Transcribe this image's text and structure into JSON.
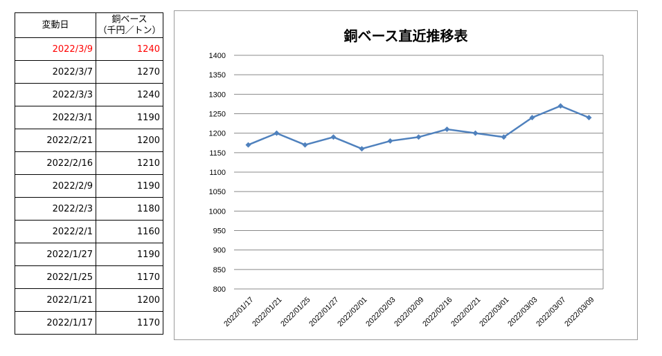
{
  "table": {
    "headers": [
      "変動日",
      "銅ベース\n（千円／トン）"
    ],
    "header_line1": "銅ベース",
    "header_line2": "（千円／トン）",
    "rows": [
      {
        "date": "2022/3/9",
        "price": "1240",
        "highlight": true
      },
      {
        "date": "2022/3/7",
        "price": "1270"
      },
      {
        "date": "2022/3/3",
        "price": "1240"
      },
      {
        "date": "2022/3/1",
        "price": "1190"
      },
      {
        "date": "2022/2/21",
        "price": "1200"
      },
      {
        "date": "2022/2/16",
        "price": "1210"
      },
      {
        "date": "2022/2/9",
        "price": "1190"
      },
      {
        "date": "2022/2/3",
        "price": "1180"
      },
      {
        "date": "2022/2/1",
        "price": "1160"
      },
      {
        "date": "2022/1/27",
        "price": "1190"
      },
      {
        "date": "2022/1/25",
        "price": "1170"
      },
      {
        "date": "2022/1/21",
        "price": "1200"
      },
      {
        "date": "2022/1/17",
        "price": "1170"
      }
    ],
    "highlight_color": "#ff0000"
  },
  "chart_data": {
    "type": "line",
    "title": "銅ベース直近推移表",
    "categories": [
      "2022/01/17",
      "2022/01/21",
      "2022/01/25",
      "2022/01/27",
      "2022/02/01",
      "2022/02/03",
      "2022/02/09",
      "2022/02/16",
      "2022/02/21",
      "2022/03/01",
      "2022/03/03",
      "2022/03/07",
      "2022/03/09"
    ],
    "values": [
      1170,
      1200,
      1170,
      1190,
      1160,
      1180,
      1190,
      1210,
      1200,
      1190,
      1240,
      1270,
      1240
    ],
    "ylim": [
      800,
      1400
    ],
    "yticks": [
      800,
      850,
      900,
      950,
      1000,
      1050,
      1100,
      1150,
      1200,
      1250,
      1300,
      1350,
      1400
    ],
    "grid": true,
    "legend": "none",
    "marker": "diamond",
    "color": "#4f81bd"
  }
}
